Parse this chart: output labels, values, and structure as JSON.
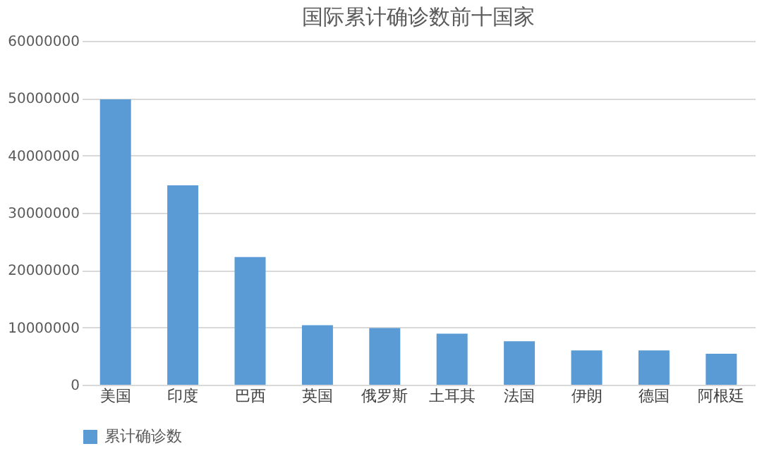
{
  "chart_data": {
    "type": "bar",
    "title": "国际累计确诊数前十国家",
    "categories": [
      "美国",
      "印度",
      "巴西",
      "英国",
      "俄罗斯",
      "土耳其",
      "法国",
      "伊朗",
      "德国",
      "阿根廷"
    ],
    "series": [
      {
        "name": "累计确诊数",
        "color": "#5b9bd5",
        "values": [
          49800000,
          34800000,
          22300000,
          10400000,
          9900000,
          8900000,
          7600000,
          6000000,
          6000000,
          5400000
        ]
      }
    ],
    "ylim": [
      0,
      60000000
    ],
    "yticks": [
      0,
      10000000,
      20000000,
      30000000,
      40000000,
      50000000,
      60000000
    ],
    "grid": "y",
    "legend": "bottom"
  }
}
